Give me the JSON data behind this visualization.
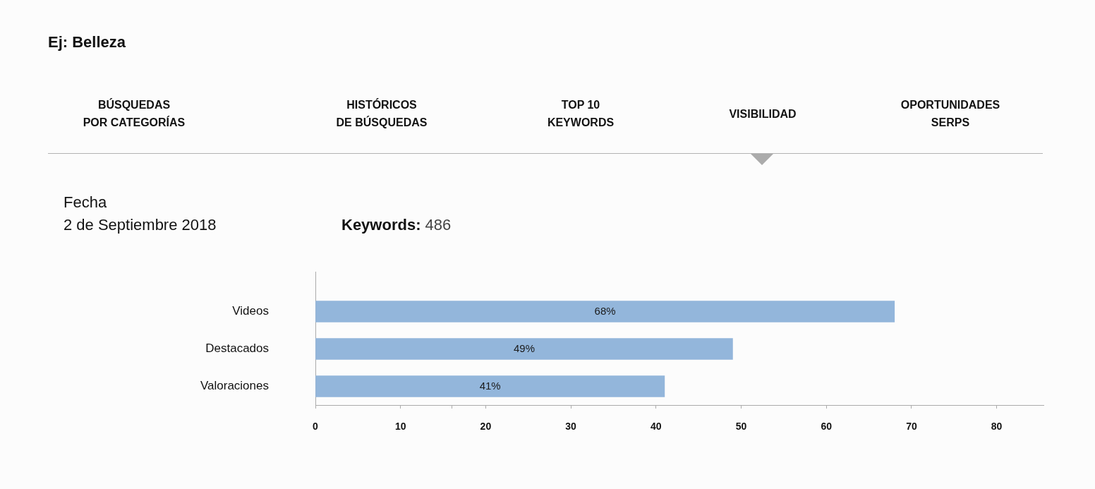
{
  "chart_data": {
    "type": "bar",
    "orientation": "horizontal",
    "title": "Ej: Belleza",
    "annotations": [
      "BÚSQUEDAS\nPOR CATEGORÍAS",
      "HISTÓRICOS\nDE BÚSQUEDAS",
      "TOP 10\nKEYWORDS",
      "VISIBILIDAD",
      "OPORTUNIDADES\nSERPS",
      "Fecha",
      "2 de Septiembre 2018",
      "Keywords:",
      "486"
    ],
    "categories": [
      "Videos",
      "Destacados",
      "Valoraciones"
    ],
    "values": [
      68,
      49,
      41
    ],
    "value_labels": [
      "68%",
      "49%",
      "41%"
    ],
    "color": "#93b6db",
    "xlim": [
      0,
      85.5
    ],
    "xticks": [
      0,
      10,
      {
        "value": 16,
        "label": null
      },
      20,
      30,
      40,
      50,
      60,
      70,
      80
    ]
  }
}
